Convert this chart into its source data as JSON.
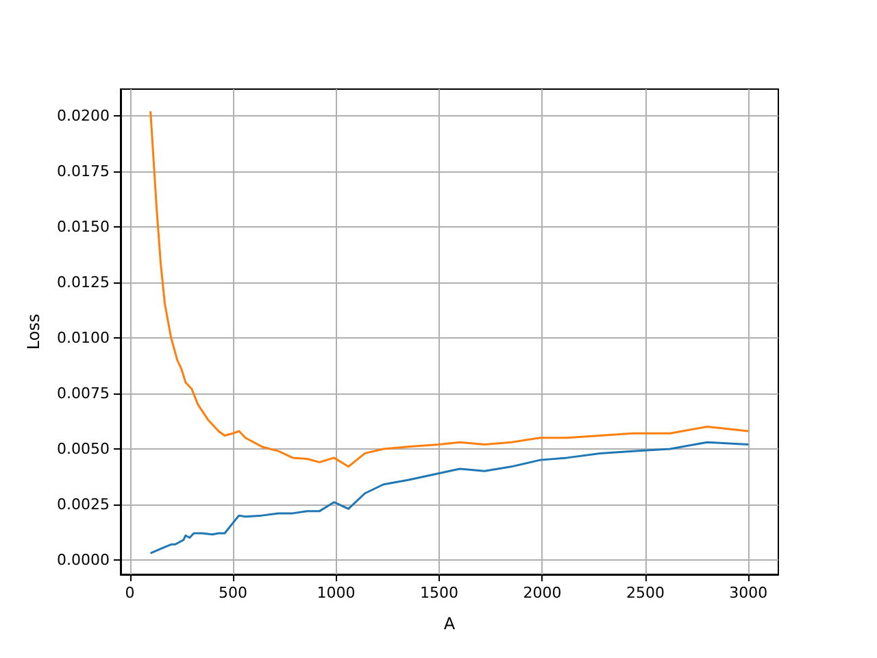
{
  "chart_data": {
    "type": "line",
    "xlabel": "A",
    "ylabel": "Loss",
    "xlim": [
      -45,
      3145
    ],
    "xticks": [
      0,
      500,
      1000,
      1500,
      2000,
      2500,
      3000
    ],
    "ylim": [
      -0.00065,
      0.0212
    ],
    "yticks": [
      {
        "value": 0,
        "label": "0.0000"
      },
      {
        "value": 0.0025,
        "label": "0.0025"
      },
      {
        "value": 0.005,
        "label": "0.0050"
      },
      {
        "value": 0.0075,
        "label": "0.0075"
      },
      {
        "value": 0.01,
        "label": "0.0100"
      },
      {
        "value": 0.0125,
        "label": "0.0125"
      },
      {
        "value": 0.015,
        "label": "0.0150"
      },
      {
        "value": 0.0175,
        "label": "0.0175"
      },
      {
        "value": 0.02,
        "label": "0.0200"
      }
    ],
    "grid": true,
    "marker": "none",
    "line_style": "solid",
    "series": [
      {
        "color": "#1f77b4",
        "x": [
          100,
          150,
          200,
          220,
          240,
          260,
          270,
          290,
          310,
          350,
          400,
          430,
          460,
          520,
          530,
          560,
          640,
          720,
          790,
          860,
          920,
          990,
          1060,
          1140,
          1230,
          1350,
          1500,
          1600,
          1720,
          1850,
          1990,
          2120,
          2280,
          2440,
          2620,
          2800,
          3000
        ],
        "values": [
          0.0003,
          0.0005,
          0.0007,
          0.0007,
          0.0008,
          0.0009,
          0.0011,
          0.001,
          0.0012,
          0.0012,
          0.00115,
          0.0012,
          0.0012,
          0.0019,
          0.002,
          0.00195,
          0.002,
          0.0021,
          0.0021,
          0.0022,
          0.0022,
          0.0026,
          0.0023,
          0.003,
          0.0034,
          0.0036,
          0.0039,
          0.0041,
          0.004,
          0.0042,
          0.0045,
          0.0046,
          0.0048,
          0.0049,
          0.005,
          0.0053,
          0.0052
        ]
      },
      {
        "color": "#ff7f0e",
        "x": [
          100,
          130,
          150,
          170,
          200,
          230,
          250,
          270,
          300,
          330,
          380,
          430,
          460,
          500,
          530,
          560,
          640,
          720,
          790,
          860,
          920,
          990,
          1060,
          1140,
          1230,
          1350,
          1500,
          1600,
          1720,
          1850,
          1990,
          2120,
          2280,
          2440,
          2620,
          2800,
          3000
        ],
        "values": [
          0.0202,
          0.0158,
          0.0133,
          0.0115,
          0.01,
          0.009,
          0.0086,
          0.008,
          0.0077,
          0.007,
          0.0063,
          0.0058,
          0.0056,
          0.0057,
          0.0058,
          0.0055,
          0.0051,
          0.0049,
          0.0046,
          0.00455,
          0.0044,
          0.0046,
          0.0042,
          0.0048,
          0.005,
          0.0051,
          0.0052,
          0.0053,
          0.0052,
          0.0053,
          0.0055,
          0.0055,
          0.0056,
          0.0057,
          0.0057,
          0.006,
          0.0058
        ]
      }
    ]
  }
}
